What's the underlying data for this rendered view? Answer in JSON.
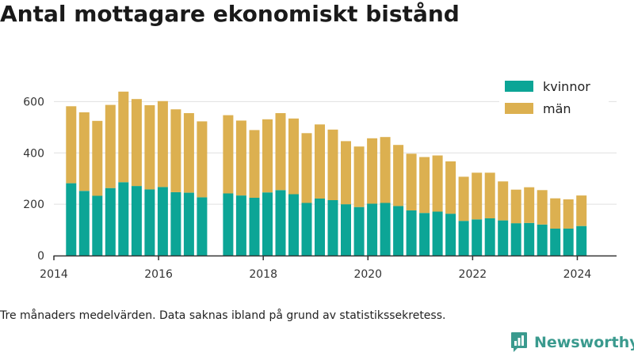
{
  "title": "Antal mottagare ekonomiskt bistånd",
  "footnote": "Tre månaders medelvärden. Data saknas ibland på grund av statistikssekretess.",
  "brand": {
    "name": "Newsworthy",
    "icon": "newsworthy-logo-icon",
    "color": "#3a9a8e"
  },
  "colors": {
    "kvinnor": "#0ca596",
    "man": "#dcb050",
    "grid": "#e0e0e0",
    "axis": "#333333"
  },
  "chart_data": {
    "type": "bar",
    "stacked": true,
    "x_unit": "year",
    "xlim": [
      2014.0,
      2024.75
    ],
    "ylim": [
      0,
      700
    ],
    "xticks": [
      2014,
      2016,
      2018,
      2020,
      2022,
      2024
    ],
    "xtick_labels": [
      "2014",
      "2016",
      "2018",
      "2020",
      "2022",
      "2024"
    ],
    "yticks": [
      0,
      200,
      400,
      600
    ],
    "ytick_labels": [
      "0",
      "200",
      "400",
      "600"
    ],
    "grid": "horizontal",
    "legend_position": "top-right",
    "legend": [
      "kvinnor",
      "män"
    ],
    "x": [
      2014.33,
      2014.58,
      2014.83,
      2015.08,
      2015.33,
      2015.58,
      2015.83,
      2016.08,
      2016.33,
      2016.58,
      2016.83,
      2017.33,
      2017.58,
      2017.83,
      2018.08,
      2018.33,
      2018.58,
      2018.83,
      2019.08,
      2019.33,
      2019.58,
      2019.83,
      2020.08,
      2020.33,
      2020.58,
      2020.83,
      2021.08,
      2021.33,
      2021.58,
      2021.83,
      2022.08,
      2022.33,
      2022.58,
      2022.83,
      2023.08,
      2023.33,
      2023.58,
      2023.83,
      2024.08
    ],
    "series": [
      {
        "name": "kvinnor",
        "values": [
          282,
          252,
          233,
          263,
          286,
          271,
          258,
          267,
          247,
          245,
          227,
          242,
          234,
          225,
          246,
          255,
          239,
          205,
          222,
          216,
          200,
          189,
          202,
          205,
          193,
          176,
          166,
          171,
          163,
          135,
          141,
          145,
          137,
          126,
          127,
          121,
          105,
          105,
          115
        ]
      },
      {
        "name": "män",
        "values": [
          300,
          306,
          292,
          324,
          353,
          339,
          328,
          335,
          323,
          310,
          296,
          305,
          292,
          264,
          285,
          300,
          295,
          272,
          289,
          275,
          246,
          236,
          255,
          257,
          238,
          221,
          218,
          219,
          204,
          172,
          182,
          178,
          152,
          131,
          139,
          134,
          118,
          114,
          119
        ]
      }
    ]
  }
}
